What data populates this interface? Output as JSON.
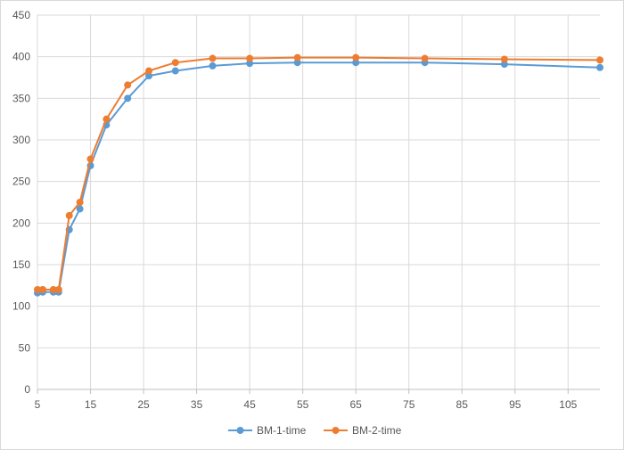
{
  "chart_data": {
    "type": "line",
    "title": "",
    "xlabel": "",
    "ylabel": "",
    "xlim": [
      5,
      111
    ],
    "ylim": [
      0,
      450
    ],
    "x_ticks": [
      5,
      15,
      25,
      35,
      45,
      55,
      65,
      75,
      85,
      95,
      105
    ],
    "y_ticks": [
      0,
      50,
      100,
      150,
      200,
      250,
      300,
      350,
      400,
      450
    ],
    "grid": "vertical and horizontal major gridlines",
    "legend_position": "bottom",
    "series": [
      {
        "name": "BM-1-time",
        "color": "#5b9bd5",
        "x": [
          5,
          6,
          8,
          9,
          11,
          13,
          15,
          18,
          22,
          26,
          31,
          38,
          45,
          54,
          65,
          78,
          93,
          111
        ],
        "y": [
          116,
          117,
          117,
          117,
          192,
          217,
          269,
          318,
          350,
          377,
          383,
          389,
          392,
          393,
          393,
          393,
          391,
          387
        ]
      },
      {
        "name": "BM-2-time",
        "color": "#ed7d31",
        "x": [
          5,
          6,
          8,
          9,
          11,
          13,
          15,
          18,
          22,
          26,
          31,
          38,
          45,
          54,
          65,
          78,
          93,
          111
        ],
        "y": [
          120,
          120,
          120,
          120,
          209,
          225,
          277,
          325,
          366,
          383,
          393,
          398,
          398,
          399,
          399,
          398,
          397,
          396
        ]
      }
    ]
  }
}
